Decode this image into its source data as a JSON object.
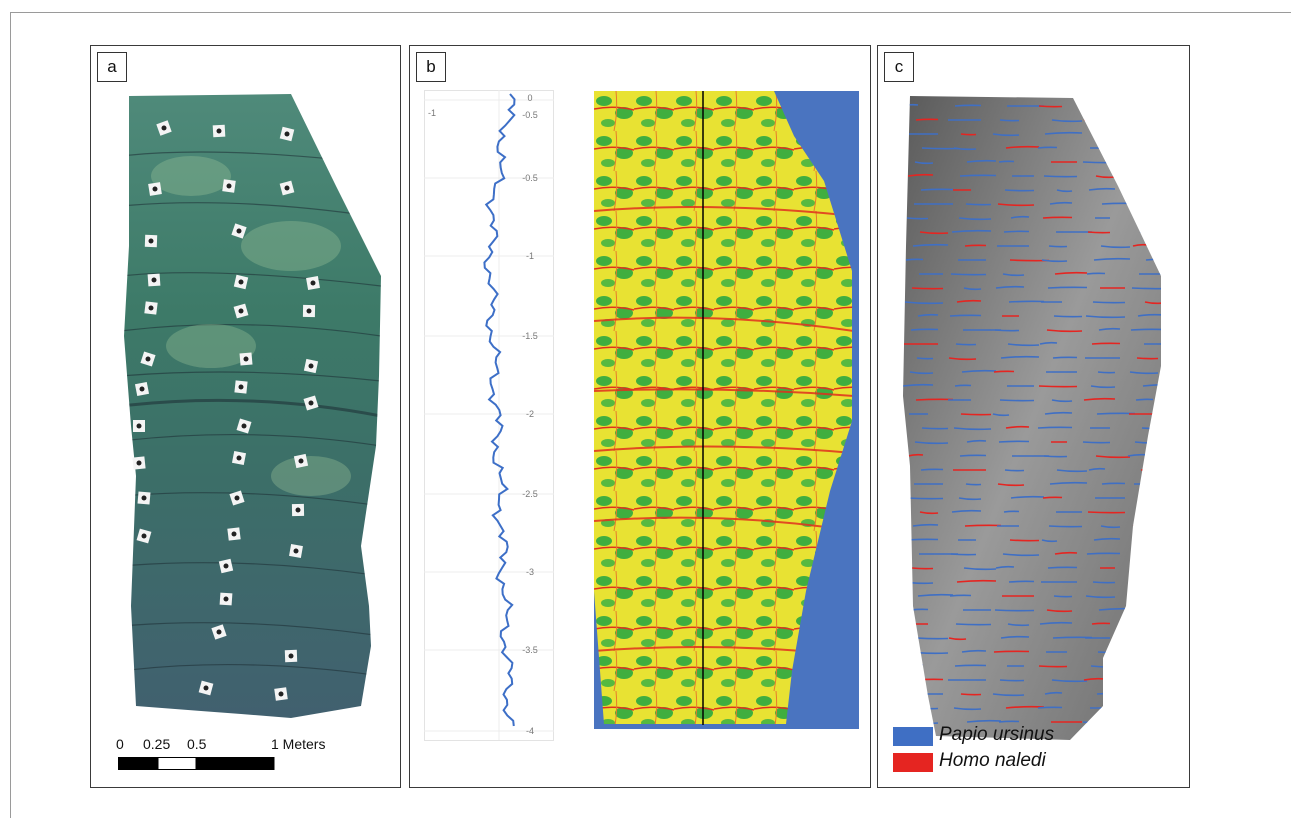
{
  "panels": {
    "a": {
      "label": "a",
      "scale_bar": {
        "ticks": [
          "0",
          "0.25",
          "0.5",
          "1 Meters"
        ]
      }
    },
    "b": {
      "label": "b",
      "profile_chart": {
        "x_tick": "-1",
        "y_ticks": [
          "0",
          "-0.5",
          "-0.5",
          "-1",
          "-1.5",
          "-2",
          "-2.5",
          "-3",
          "-3.5",
          "-4"
        ],
        "line_color": "#3d6fc7"
      },
      "heatmap_colors": {
        "background": "#4a74c0",
        "green": "#3fae3f",
        "yellow": "#e8e233",
        "red": "#e0301e"
      }
    },
    "c": {
      "label": "c",
      "legend": [
        {
          "label": "Papio ursinus",
          "color": "#3f6fc4"
        },
        {
          "label": "Homo naledi",
          "color": "#e52521"
        }
      ]
    }
  }
}
